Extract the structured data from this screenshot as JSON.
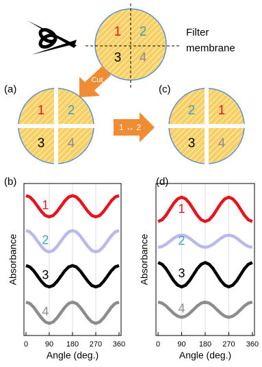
{
  "diagram": {
    "filter_label": [
      "Filter",
      "membrane"
    ],
    "cut_label": "Cut",
    "swap_label": "1 ↔ 2",
    "panel_a": "(a)",
    "panel_c": "(c)",
    "membrane_numbers": [
      "1",
      "2",
      "3",
      "4"
    ],
    "a_numbers": [
      "1",
      "2",
      "3",
      "4"
    ],
    "c_numbers": [
      "2",
      "1",
      "3",
      "4"
    ]
  },
  "chart_data": [
    {
      "type": "line",
      "panel": "(b)",
      "x_label": "Angle (deg.)",
      "y_label": "Absorbance",
      "x": [
        0,
        15,
        30,
        45,
        60,
        75,
        90,
        105,
        120,
        135,
        150,
        165,
        180,
        195,
        210,
        225,
        240,
        255,
        270,
        285,
        300,
        315,
        330,
        345,
        360
      ],
      "xlim": [
        -8,
        368
      ],
      "xticks": [
        0,
        90,
        180,
        270,
        360
      ],
      "ylim": [
        0,
        10
      ],
      "grid": true,
      "series": [
        {
          "name": "1",
          "color": "#e8141c",
          "label_color": "#e8141c",
          "values": [
            9.2,
            9.11,
            8.85,
            8.5,
            8.15,
            7.89,
            7.8,
            7.89,
            8.15,
            8.5,
            8.85,
            9.11,
            9.2,
            9.11,
            8.85,
            8.5,
            8.15,
            7.89,
            7.8,
            7.89,
            8.15,
            8.5,
            8.85,
            9.11,
            9.2
          ]
        },
        {
          "name": "2",
          "color": "#b9b9ee",
          "label_color": "#3aa0c8",
          "values": [
            6.9,
            6.81,
            6.55,
            6.2,
            5.85,
            5.59,
            5.5,
            5.59,
            5.85,
            6.2,
            6.55,
            6.81,
            6.9,
            6.81,
            6.55,
            6.2,
            5.85,
            5.59,
            5.5,
            5.59,
            5.85,
            6.2,
            6.55,
            6.81,
            6.9
          ]
        },
        {
          "name": "3",
          "color": "#000000",
          "label_color": "#000000",
          "values": [
            4.6,
            4.51,
            4.25,
            3.9,
            3.55,
            3.29,
            3.2,
            3.29,
            3.55,
            3.9,
            4.25,
            4.51,
            4.6,
            4.51,
            4.25,
            3.9,
            3.55,
            3.29,
            3.2,
            3.29,
            3.55,
            3.9,
            4.25,
            4.51,
            4.6
          ]
        },
        {
          "name": "4",
          "color": "#8c8c8c",
          "label_color": "#8c8c8c",
          "values": [
            2.2,
            2.11,
            1.85,
            1.5,
            1.15,
            0.89,
            0.8,
            0.89,
            1.15,
            1.5,
            1.85,
            2.11,
            2.2,
            2.11,
            1.85,
            1.5,
            1.15,
            0.89,
            0.8,
            0.89,
            1.15,
            1.5,
            1.85,
            2.11,
            2.2
          ]
        }
      ]
    },
    {
      "type": "line",
      "panel": "(d)",
      "x_label": "Angle (deg.)",
      "y_label": "Absorbance",
      "x": [
        0,
        15,
        30,
        45,
        60,
        75,
        90,
        105,
        120,
        135,
        150,
        165,
        180,
        195,
        210,
        225,
        240,
        255,
        270,
        285,
        300,
        315,
        330,
        345,
        360
      ],
      "xlim": [
        -8,
        368
      ],
      "xticks": [
        0,
        90,
        180,
        270,
        360
      ],
      "ylim": [
        0,
        10
      ],
      "grid": true,
      "series": [
        {
          "name": "1",
          "color": "#e8141c",
          "label_color": "#e8141c",
          "values": [
            7.5,
            7.61,
            7.9,
            8.3,
            8.7,
            8.99,
            9.1,
            8.99,
            8.7,
            8.3,
            7.9,
            7.61,
            7.5,
            7.61,
            7.9,
            8.3,
            8.7,
            8.99,
            9.1,
            8.99,
            8.7,
            8.3,
            7.9,
            7.61,
            7.5
          ]
        },
        {
          "name": "2",
          "color": "#b9b9ee",
          "label_color": "#3aa0c8",
          "values": [
            5.8,
            5.85,
            6.0,
            6.2,
            6.4,
            6.55,
            6.6,
            6.55,
            6.4,
            6.2,
            6.0,
            5.85,
            5.8,
            5.85,
            6.0,
            6.2,
            6.4,
            6.55,
            6.6,
            6.55,
            6.4,
            6.2,
            6.0,
            5.85,
            5.8
          ]
        },
        {
          "name": "3",
          "color": "#000000",
          "label_color": "#000000",
          "values": [
            4.8,
            4.69,
            4.4,
            4.0,
            3.6,
            3.31,
            3.2,
            3.31,
            3.6,
            4.0,
            4.4,
            4.69,
            4.8,
            4.69,
            4.4,
            4.0,
            3.6,
            3.31,
            3.2,
            3.31,
            3.6,
            4.0,
            4.4,
            4.69,
            4.8
          ]
        },
        {
          "name": "4",
          "color": "#8c8c8c",
          "label_color": "#8c8c8c",
          "values": [
            2.2,
            2.13,
            1.95,
            1.7,
            1.45,
            1.27,
            1.2,
            1.27,
            1.45,
            1.7,
            1.95,
            2.13,
            2.2,
            2.13,
            1.95,
            1.7,
            1.45,
            1.27,
            1.2,
            1.27,
            1.45,
            1.7,
            1.95,
            2.13,
            2.2
          ]
        }
      ]
    }
  ]
}
